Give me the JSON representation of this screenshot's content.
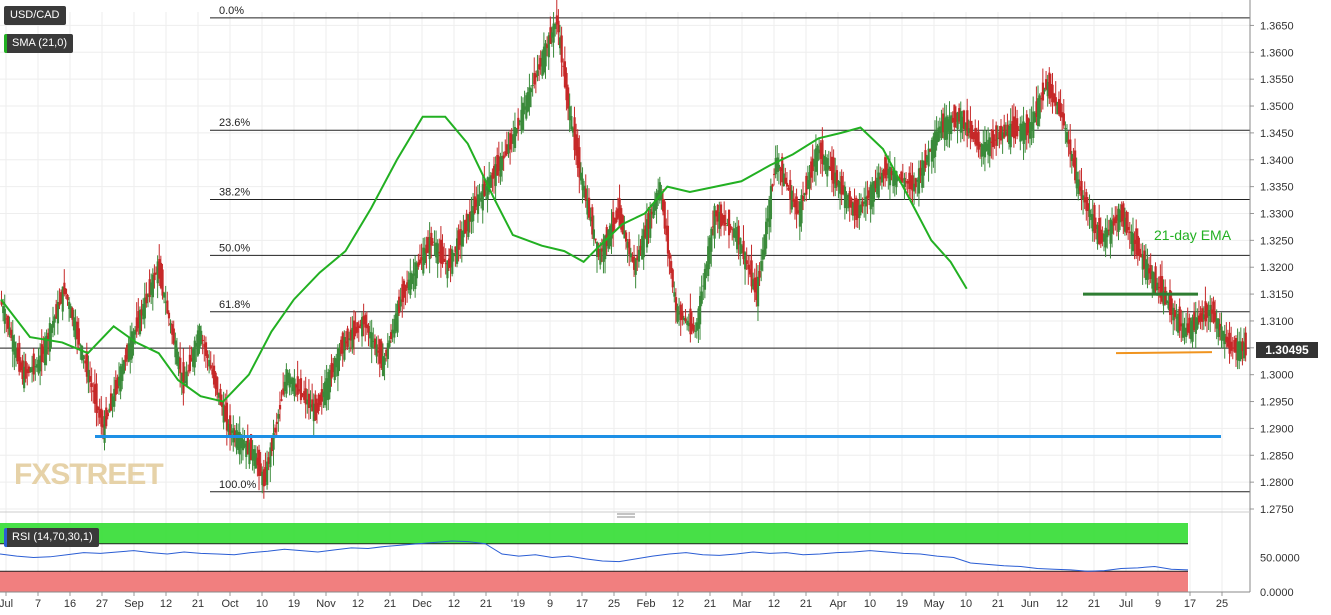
{
  "symbol": "USD/CAD",
  "indicators": {
    "sma_label": "SMA (21,0)",
    "rsi_label": "RSI (14,70,30,1)",
    "ema_annotation": "21-day EMA"
  },
  "watermark": "FXSTREET",
  "colors": {
    "up_candle": "#3a8a3a",
    "down_candle": "#c62828",
    "sma_line": "#22b022",
    "support_line": "#1e90e6",
    "resistance_line": "#2e7d32",
    "recent_support": "#f0941f",
    "rsi_line": "#2a5dd4",
    "rsi_overbought": "#33dd33",
    "rsi_oversold": "#f07878"
  },
  "chart_data": [
    {
      "type": "candlestick",
      "title": "USD/CAD",
      "ylim": [
        1.275,
        1.3675
      ],
      "y_ticks": [
        "1.3650",
        "1.3600",
        "1.3550",
        "1.3500",
        "1.3450",
        "1.3400",
        "1.3350",
        "1.3300",
        "1.3250",
        "1.3200",
        "1.3150",
        "1.3100",
        "1.3050",
        "1.3000",
        "1.2950",
        "1.2900",
        "1.2850",
        "1.2800",
        "1.2750"
      ],
      "x_tick_labels": [
        "Jul",
        "7",
        "16",
        "27",
        "Sep",
        "12",
        "21",
        "Oct",
        "10",
        "19",
        "Nov",
        "12",
        "21",
        "Dec",
        "12",
        "21",
        "'19",
        "9",
        "17",
        "25",
        "Feb",
        "12",
        "21",
        "Mar",
        "12",
        "21",
        "Apr",
        "10",
        "19",
        "May",
        "10",
        "21",
        "Jun",
        "12",
        "21",
        "Jul",
        "9",
        "17",
        "25"
      ],
      "current_price": "1.30495",
      "fibonacci": [
        {
          "label": "0.0%",
          "price": 1.3664
        },
        {
          "label": "23.6%",
          "price": 1.3455
        },
        {
          "label": "38.2%",
          "price": 1.3326
        },
        {
          "label": "50.0%",
          "price": 1.3222
        },
        {
          "label": "61.8%",
          "price": 1.3117
        },
        {
          "label": "100.0%",
          "price": 1.2782
        }
      ],
      "support_level": 1.2885,
      "resistance_zone": 1.315,
      "recent_support": [
        1.304,
        1.3042
      ],
      "price_path": [
        [
          1.314,
          0
        ],
        [
          1.3,
          14
        ],
        [
          1.302,
          24
        ],
        [
          1.316,
          40
        ],
        [
          1.29,
          64
        ],
        [
          1.305,
          80
        ],
        [
          1.32,
          98
        ],
        [
          1.298,
          114
        ],
        [
          1.308,
          124
        ],
        [
          1.29,
          142
        ],
        [
          1.285,
          158
        ],
        [
          1.28,
          164
        ],
        [
          1.3,
          178
        ],
        [
          1.293,
          196
        ],
        [
          1.305,
          212
        ],
        [
          1.31,
          226
        ],
        [
          1.302,
          238
        ],
        [
          1.315,
          250
        ],
        [
          1.325,
          268
        ],
        [
          1.32,
          278
        ],
        [
          1.332,
          296
        ],
        [
          1.34,
          312
        ],
        [
          1.345,
          320
        ],
        [
          1.355,
          332
        ],
        [
          1.366,
          346
        ],
        [
          1.352,
          352
        ],
        [
          1.338,
          360
        ],
        [
          1.322,
          372
        ],
        [
          1.33,
          384
        ],
        [
          1.32,
          394
        ],
        [
          1.335,
          410
        ],
        [
          1.312,
          420
        ],
        [
          1.308,
          432
        ],
        [
          1.33,
          444
        ],
        [
          1.326,
          458
        ],
        [
          1.315,
          470
        ],
        [
          1.34,
          482
        ],
        [
          1.33,
          496
        ],
        [
          1.342,
          508
        ],
        [
          1.335,
          522
        ],
        [
          1.33,
          532
        ],
        [
          1.338,
          550
        ],
        [
          1.335,
          568
        ],
        [
          1.346,
          584
        ],
        [
          1.348,
          596
        ],
        [
          1.342,
          610
        ],
        [
          1.345,
          624
        ],
        [
          1.346,
          640
        ],
        [
          1.354,
          650
        ],
        [
          1.348,
          660
        ],
        [
          1.335,
          670
        ],
        [
          1.325,
          684
        ],
        [
          1.33,
          696
        ],
        [
          1.32,
          712
        ],
        [
          1.314,
          724
        ],
        [
          1.308,
          736
        ],
        [
          1.312,
          752
        ],
        [
          1.305,
          764
        ],
        [
          1.305,
          774
        ]
      ],
      "sma_path": [
        [
          1.314,
          0
        ],
        [
          1.307,
          18
        ],
        [
          1.306,
          38
        ],
        [
          1.304,
          54
        ],
        [
          1.309,
          70
        ],
        [
          1.306,
          84
        ],
        [
          1.304,
          98
        ],
        [
          1.299,
          110
        ],
        [
          1.296,
          124
        ],
        [
          1.295,
          138
        ],
        [
          1.3,
          154
        ],
        [
          1.308,
          168
        ],
        [
          1.314,
          182
        ],
        [
          1.319,
          198
        ],
        [
          1.323,
          214
        ],
        [
          1.331,
          230
        ],
        [
          1.34,
          246
        ],
        [
          1.348,
          262
        ],
        [
          1.348,
          276
        ],
        [
          1.343,
          290
        ],
        [
          1.333,
          306
        ],
        [
          1.326,
          318
        ],
        [
          1.324,
          336
        ],
        [
          1.323,
          350
        ],
        [
          1.321,
          362
        ],
        [
          1.324,
          372
        ],
        [
          1.328,
          386
        ],
        [
          1.33,
          400
        ],
        [
          1.335,
          414
        ],
        [
          1.334,
          428
        ],
        [
          1.335,
          444
        ],
        [
          1.336,
          460
        ],
        [
          1.339,
          478
        ],
        [
          1.341,
          492
        ],
        [
          1.344,
          508
        ],
        [
          1.345,
          522
        ],
        [
          1.346,
          534
        ],
        [
          1.342,
          548
        ],
        [
          1.333,
          564
        ],
        [
          1.325,
          578
        ],
        [
          1.321,
          590
        ],
        [
          1.316,
          600
        ]
      ],
      "sma_spacing": 1.85
    },
    {
      "type": "line",
      "title": "RSI (14,70,30,1)",
      "ylim": [
        0,
        100
      ],
      "y_ticks": [
        "50.0000",
        "0.0000"
      ],
      "overbought": 70,
      "oversold": 30,
      "values": [
        55,
        52,
        50,
        51,
        54,
        57,
        56,
        58,
        60,
        57,
        55,
        58,
        56,
        55,
        54,
        57,
        59,
        62,
        60,
        58,
        61,
        64,
        63,
        66,
        68,
        70,
        72,
        74,
        73,
        70,
        55,
        52,
        54,
        50,
        52,
        48,
        45,
        44,
        48,
        52,
        55,
        57,
        54,
        53,
        55,
        58,
        56,
        57,
        54,
        55,
        57,
        58,
        60,
        58,
        56,
        55,
        52,
        50,
        42,
        40,
        38,
        37,
        34,
        33,
        32,
        30,
        31,
        34,
        35,
        37,
        33,
        32
      ]
    }
  ]
}
